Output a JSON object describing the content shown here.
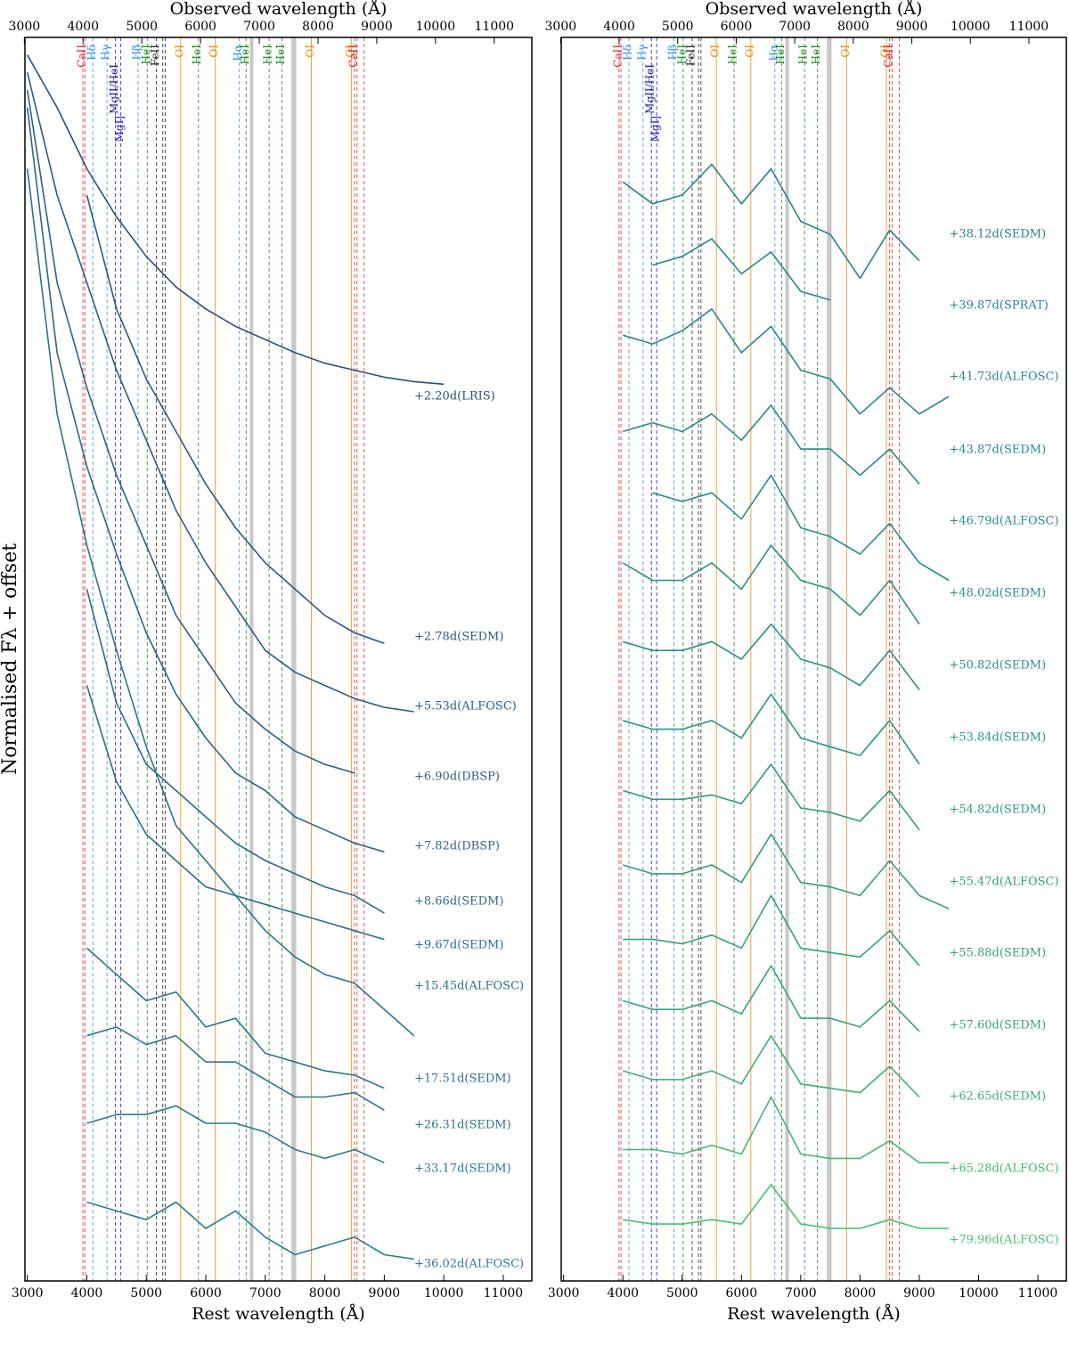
{
  "chart_data": [
    {
      "type": "line",
      "panel": "left",
      "ylabel": "Normalised Fλ + offset",
      "xlabel": "Rest wavelength (Å)",
      "x2label": "Observed wavelength (Å)",
      "xlim": [
        2960,
        11480
      ],
      "xticks": [
        3000,
        4000,
        5000,
        6000,
        7000,
        8000,
        9000,
        10000,
        11000
      ],
      "x2lim": [
        3010,
        11640
      ],
      "x2ticks": [
        3000,
        4000,
        5000,
        6000,
        7000,
        8000,
        9000,
        10000,
        11000
      ],
      "ylim": [
        4,
        146
      ],
      "bands": [
        [
          6740,
          6800
        ],
        [
          7440,
          7520
        ]
      ],
      "markers": [
        {
          "label": "CaII",
          "x": [
            3934,
            3968
          ],
          "color": "#e8282b",
          "dashed": true
        },
        {
          "label": "Hδ",
          "x": [
            4102
          ],
          "color": "#3a8fe0",
          "dashed": true
        },
        {
          "label": "Hγ",
          "x": [
            4340
          ],
          "color": "#3a8fe0",
          "dashed": true
        },
        {
          "label": "MgII/HeI",
          "x": [
            4481
          ],
          "color": "#1a1a9a",
          "dashed": true
        },
        {
          "label": "MgI]",
          "x": [
            4571
          ],
          "color": "#1a1ad0",
          "dashed": true
        },
        {
          "label": "Hβ",
          "x": [
            4861
          ],
          "color": "#3a8fe0",
          "dashed": true
        },
        {
          "label": "HeI",
          "x": [
            5016
          ],
          "color": "#1f8a1f",
          "dashed": true
        },
        {
          "label": "FeII",
          "x": [
            5169,
            5276,
            5317
          ],
          "color": "#222222",
          "dashed": true
        },
        {
          "label": "OI",
          "x": [
            5577
          ],
          "color": "#f08a00",
          "dashed": false
        },
        {
          "label": "HeI",
          "x": [
            5876
          ],
          "color": "#1f8a1f",
          "dashed": true
        },
        {
          "label": "OI",
          "x": [
            6158
          ],
          "color": "#f08a00",
          "dashed": false
        },
        {
          "label": "Hα",
          "x": [
            6563
          ],
          "color": "#3a8fe0",
          "dashed": true
        },
        {
          "label": "HeI",
          "x": [
            6678
          ],
          "color": "#1f8a1f",
          "dashed": true
        },
        {
          "label": "HeI",
          "x": [
            7065
          ],
          "color": "#1f8a1f",
          "dashed": true
        },
        {
          "label": "HeI",
          "x": [
            7281
          ],
          "color": "#1f8a1f",
          "dashed": true
        },
        {
          "label": "OI",
          "x": [
            7774
          ],
          "color": "#f08a00",
          "dashed": false
        },
        {
          "label": "OI",
          "x": [
            8446
          ],
          "color": "#f08a00",
          "dashed": false
        },
        {
          "label": "CaII",
          "x": [
            8498,
            8542,
            8662
          ],
          "color": "#e8282b",
          "dashed": true
        }
      ],
      "x": [
        3000,
        3500,
        4000,
        4500,
        5000,
        5500,
        6000,
        6500,
        7000,
        7500,
        8000,
        8500,
        9000,
        9500,
        10000
      ],
      "series": [
        {
          "name": "+2.20d(LRIS)",
          "color": "#2d4e80",
          "values": [
            144,
            138,
            131,
            125.5,
            121,
            117.5,
            115,
            113,
            111.5,
            110,
            108.8,
            108,
            107.2,
            106.7,
            106.4
          ]
        },
        {
          "name": "+2.78d(SEDM)",
          "color": "#2e5782",
          "values": [
            null,
            null,
            128,
            115,
            107,
            101,
            95,
            90,
            86,
            83,
            80,
            78,
            76.8,
            null,
            null
          ]
        },
        {
          "name": "+5.53d(ALFOSC)",
          "color": "#2e5c84",
          "values": [
            142,
            128,
            118,
            108,
            100,
            92,
            86,
            81,
            76,
            73.5,
            72,
            70.5,
            69.5,
            69,
            null
          ]
        },
        {
          "name": "+6.90d(DBSP)",
          "color": "#2e6185",
          "values": [
            140,
            118,
            106,
            96,
            88,
            80,
            75,
            70,
            67,
            64.5,
            63,
            62,
            null,
            null,
            null
          ]
        },
        {
          "name": "+7.82d(DBSP)",
          "color": "#2d6686",
          "values": [
            138,
            110,
            97,
            87,
            78,
            71,
            66,
            62,
            60,
            57,
            55.5,
            54,
            53,
            null,
            null
          ]
        },
        {
          "name": "+8.66d(SEDM)",
          "color": "#2d6a87",
          "values": [
            null,
            null,
            83,
            70,
            63,
            60,
            57,
            54,
            52,
            50.5,
            49,
            48,
            46,
            null,
            null
          ]
        },
        {
          "name": "+9.67d(SEDM)",
          "color": "#2d6e88",
          "values": [
            null,
            null,
            72,
            61,
            55,
            52,
            49,
            48,
            47,
            46,
            45,
            44,
            43,
            null,
            null
          ]
        },
        {
          "name": "+15.45d(ALFOSC)",
          "color": "#2c7289",
          "values": [
            131,
            103,
            88,
            76,
            65,
            56,
            52,
            48,
            44,
            41,
            39,
            38,
            35,
            32,
            null
          ]
        },
        {
          "name": "+17.51d(SEDM)",
          "color": "#2c7589",
          "values": [
            null,
            null,
            42,
            39,
            36,
            37,
            33,
            34,
            30,
            29,
            28,
            27.5,
            26,
            null,
            null
          ]
        },
        {
          "name": "+26.31d(SEDM)",
          "color": "#2b788a",
          "values": [
            null,
            null,
            32,
            33,
            31,
            32,
            29,
            29,
            27,
            25,
            25,
            25.5,
            23.5,
            null,
            null
          ]
        },
        {
          "name": "+33.17d(SEDM)",
          "color": "#2b7b8a",
          "values": [
            null,
            null,
            22,
            23,
            23,
            24,
            22,
            22,
            21,
            19,
            18,
            19,
            17.5,
            null,
            null
          ]
        },
        {
          "name": "+36.02d(ALFOSC)",
          "color": "#2b7e8a",
          "values": [
            null,
            null,
            13,
            12,
            11,
            13,
            10,
            12,
            9,
            7,
            8,
            9,
            7,
            6.5,
            null
          ]
        }
      ]
    },
    {
      "type": "line",
      "panel": "right",
      "xlabel": "Rest wavelength (Å)",
      "x2label": "Observed wavelength (Å)",
      "xlim": [
        2960,
        11480
      ],
      "xticks": [
        3000,
        4000,
        5000,
        6000,
        7000,
        8000,
        9000,
        10000,
        11000
      ],
      "x2lim": [
        3010,
        11640
      ],
      "x2ticks": [
        3000,
        4000,
        5000,
        6000,
        7000,
        8000,
        9000,
        10000,
        11000
      ],
      "ylim": [
        4,
        146
      ],
      "bands": [
        [
          6740,
          6800
        ],
        [
          7440,
          7520
        ]
      ],
      "markers": [
        {
          "label": "CaII",
          "x": [
            3934,
            3968
          ],
          "color": "#e8282b",
          "dashed": true
        },
        {
          "label": "Hδ",
          "x": [
            4102
          ],
          "color": "#3a8fe0",
          "dashed": true
        },
        {
          "label": "Hγ",
          "x": [
            4340
          ],
          "color": "#3a8fe0",
          "dashed": true
        },
        {
          "label": "MgII/HeI",
          "x": [
            4481
          ],
          "color": "#1a1a9a",
          "dashed": true
        },
        {
          "label": "MgI]",
          "x": [
            4571
          ],
          "color": "#1a1ad0",
          "dashed": true
        },
        {
          "label": "Hβ",
          "x": [
            4861
          ],
          "color": "#3a8fe0",
          "dashed": true
        },
        {
          "label": "HeI",
          "x": [
            5016
          ],
          "color": "#1f8a1f",
          "dashed": true
        },
        {
          "label": "FeII",
          "x": [
            5169,
            5276,
            5317
          ],
          "color": "#222222",
          "dashed": true
        },
        {
          "label": "OI",
          "x": [
            5577
          ],
          "color": "#f08a00",
          "dashed": false
        },
        {
          "label": "HeI",
          "x": [
            5876
          ],
          "color": "#1f8a1f",
          "dashed": true
        },
        {
          "label": "OI",
          "x": [
            6158
          ],
          "color": "#f08a00",
          "dashed": false
        },
        {
          "label": "Hα",
          "x": [
            6563
          ],
          "color": "#3a8fe0",
          "dashed": true
        },
        {
          "label": "HeI",
          "x": [
            6678
          ],
          "color": "#1f8a1f",
          "dashed": true
        },
        {
          "label": "HeI",
          "x": [
            7065
          ],
          "color": "#1f8a1f",
          "dashed": true
        },
        {
          "label": "HeI",
          "x": [
            7281
          ],
          "color": "#1f8a1f",
          "dashed": true
        },
        {
          "label": "OI",
          "x": [
            7774
          ],
          "color": "#f08a00",
          "dashed": false
        },
        {
          "label": "OI",
          "x": [
            8446
          ],
          "color": "#f08a00",
          "dashed": false
        },
        {
          "label": "CaII",
          "x": [
            8498,
            8542,
            8662
          ],
          "color": "#e8282b",
          "dashed": true
        }
      ],
      "x": [
        3000,
        3500,
        4000,
        4500,
        5000,
        5500,
        6000,
        6500,
        7000,
        7500,
        8000,
        8500,
        9000,
        9500,
        10000
      ],
      "series": [
        {
          "name": "+38.12d(SEDM)",
          "color": "#2b8189",
          "values": [
            null,
            null,
            129.5,
            127,
            128,
            131.5,
            127,
            131,
            125,
            123.5,
            118.5,
            124,
            120.5,
            null,
            null
          ]
        },
        {
          "name": "+39.87d(SPRAT)",
          "color": "#2a8489",
          "values": [
            null,
            null,
            null,
            120,
            121,
            123,
            119,
            121.5,
            117,
            116,
            null,
            null,
            null,
            null,
            null
          ]
        },
        {
          "name": "+41.73d(ALFOSC)",
          "color": "#298788",
          "values": [
            null,
            null,
            112,
            111,
            112.5,
            115,
            110,
            113,
            108,
            107,
            103,
            106,
            103,
            105,
            null
          ]
        },
        {
          "name": "+43.87d(SEDM)",
          "color": "#298a88",
          "values": [
            null,
            null,
            101,
            102,
            101,
            103,
            100,
            104,
            99,
            99,
            96,
            99,
            95,
            null,
            null
          ]
        },
        {
          "name": "+46.79d(ALFOSC)",
          "color": "#288d87",
          "values": [
            null,
            null,
            null,
            94,
            93,
            94,
            91,
            96,
            90,
            89,
            87,
            90.5,
            86,
            84,
            null
          ]
        },
        {
          "name": "+48.02d(SEDM)",
          "color": "#299086",
          "values": [
            null,
            null,
            86,
            84,
            84,
            86,
            83,
            88,
            84,
            83,
            80,
            84,
            79,
            null,
            null
          ]
        },
        {
          "name": "+50.82d(SEDM)",
          "color": "#2a9385",
          "values": [
            null,
            null,
            77,
            76,
            76,
            77,
            75,
            79,
            75,
            74,
            72,
            76,
            71.5,
            null,
            null
          ]
        },
        {
          "name": "+53.84d(SEDM)",
          "color": "#2c9684",
          "values": [
            null,
            null,
            68,
            67,
            67,
            68,
            66,
            71,
            66,
            65,
            64,
            68,
            63,
            null,
            null
          ]
        },
        {
          "name": "+54.82d(SEDM)",
          "color": "#2e9a82",
          "values": [
            null,
            null,
            60,
            59,
            59,
            59.5,
            58.5,
            63,
            58,
            57.5,
            56.5,
            60,
            55.5,
            null,
            null
          ]
        },
        {
          "name": "+55.47d(ALFOSC)",
          "color": "#319d80",
          "values": [
            null,
            null,
            51.5,
            50.5,
            50.5,
            51.5,
            49.5,
            55,
            49.5,
            49,
            48,
            52,
            48,
            46.5,
            null
          ]
        },
        {
          "name": "+55.88d(SEDM)",
          "color": "#35a07e",
          "values": [
            null,
            null,
            43,
            43,
            42.5,
            43.5,
            42,
            48,
            42,
            41.5,
            41,
            44,
            40,
            null,
            null
          ]
        },
        {
          "name": "+57.60d(SEDM)",
          "color": "#39a47b",
          "values": [
            null,
            null,
            36,
            35,
            35,
            36,
            34.5,
            40,
            34,
            34,
            33,
            36,
            32.5,
            null,
            null
          ]
        },
        {
          "name": "+62.65d(SEDM)",
          "color": "#3eb077",
          "values": [
            null,
            null,
            28,
            27,
            27,
            28,
            26.5,
            32,
            26.5,
            26,
            25.5,
            28.5,
            25,
            null,
            null
          ]
        },
        {
          "name": "+65.28d(ALFOSC)",
          "color": "#42b874",
          "values": [
            null,
            null,
            19,
            19,
            18.5,
            19.5,
            18.5,
            25,
            18.5,
            18,
            18,
            20,
            17.5,
            17.5,
            null
          ]
        },
        {
          "name": "+79.96d(ALFOSC)",
          "color": "#47c06f",
          "values": [
            null,
            null,
            11,
            10.5,
            10.5,
            11,
            10.5,
            15,
            10.5,
            10,
            10,
            11,
            10,
            10,
            null
          ]
        }
      ]
    }
  ]
}
